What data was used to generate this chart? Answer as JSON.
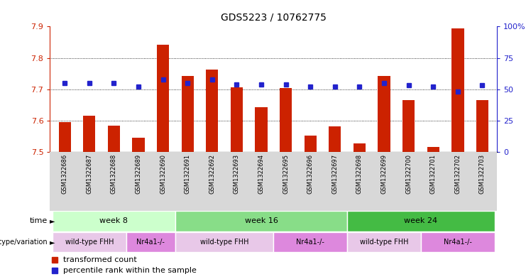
{
  "title": "GDS5223 / 10762775",
  "samples": [
    "GSM1322686",
    "GSM1322687",
    "GSM1322688",
    "GSM1322689",
    "GSM1322690",
    "GSM1322691",
    "GSM1322692",
    "GSM1322693",
    "GSM1322694",
    "GSM1322695",
    "GSM1322696",
    "GSM1322697",
    "GSM1322698",
    "GSM1322699",
    "GSM1322700",
    "GSM1322701",
    "GSM1322702",
    "GSM1322703"
  ],
  "red_values": [
    7.595,
    7.615,
    7.583,
    7.545,
    7.843,
    7.742,
    7.762,
    7.706,
    7.643,
    7.703,
    7.553,
    7.582,
    7.527,
    7.742,
    7.665,
    7.517,
    7.895,
    7.665
  ],
  "blue_percentiles": [
    55,
    55,
    55,
    52,
    58,
    55,
    58,
    54,
    54,
    54,
    52,
    52,
    52,
    55,
    53,
    52,
    48,
    53
  ],
  "ylim_left": [
    7.5,
    7.9
  ],
  "ylim_right": [
    0,
    100
  ],
  "yticks_left": [
    7.5,
    7.6,
    7.7,
    7.8,
    7.9
  ],
  "yticks_right": [
    0,
    25,
    50,
    75,
    100
  ],
  "ytick_labels_right": [
    "0",
    "25",
    "50",
    "75",
    "100%"
  ],
  "bar_color": "#cc2200",
  "dot_color": "#2222cc",
  "bar_width": 0.5,
  "time_groups": [
    {
      "label": "week 8",
      "start": 0,
      "end": 5,
      "color": "#ccffcc"
    },
    {
      "label": "week 16",
      "start": 5,
      "end": 12,
      "color": "#88dd88"
    },
    {
      "label": "week 24",
      "start": 12,
      "end": 18,
      "color": "#44bb44"
    }
  ],
  "genotype_groups": [
    {
      "label": "wild-type FHH",
      "start": 0,
      "end": 3,
      "color": "#e8c8e8"
    },
    {
      "label": "Nr4a1-/-",
      "start": 3,
      "end": 5,
      "color": "#dd88dd"
    },
    {
      "label": "wild-type FHH",
      "start": 5,
      "end": 9,
      "color": "#e8c8e8"
    },
    {
      "label": "Nr4a1-/-",
      "start": 9,
      "end": 12,
      "color": "#dd88dd"
    },
    {
      "label": "wild-type FHH",
      "start": 12,
      "end": 15,
      "color": "#e8c8e8"
    },
    {
      "label": "Nr4a1-/-",
      "start": 15,
      "end": 18,
      "color": "#dd88dd"
    }
  ],
  "left_axis_color": "#cc2200",
  "right_axis_color": "#2222cc",
  "sample_bg_color": "#d8d8d8",
  "grid_yticks": [
    7.6,
    7.7,
    7.8
  ]
}
